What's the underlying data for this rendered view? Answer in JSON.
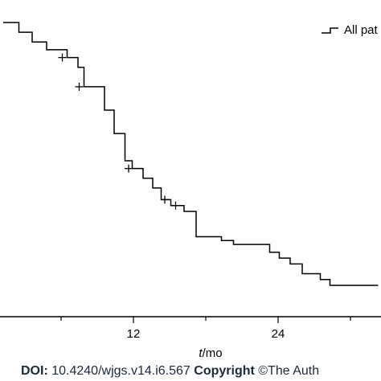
{
  "chart_data": {
    "type": "line",
    "subtype": "kaplan-meier-step",
    "xlabel_italic": "t",
    "xlabel_rest": "/mo",
    "xticks": [
      12,
      24
    ],
    "xlim": [
      1.2,
      32.3
    ],
    "ylim": [
      0.3,
      1.0
    ],
    "legend": {
      "placement": "top-right",
      "label": "All pat"
    },
    "series": [
      {
        "name": "All pat",
        "color": "#000000",
        "steps": [
          [
            1.2,
            0.975
          ],
          [
            2.5,
            0.95
          ],
          [
            3.6,
            0.925
          ],
          [
            4.8,
            0.905
          ],
          [
            6.5,
            0.885
          ],
          [
            7.4,
            0.86
          ],
          [
            7.9,
            0.81
          ],
          [
            9.6,
            0.75
          ],
          [
            10.4,
            0.69
          ],
          [
            11.3,
            0.62
          ],
          [
            11.9,
            0.6
          ],
          [
            12.8,
            0.575
          ],
          [
            13.6,
            0.55
          ],
          [
            14.3,
            0.52
          ],
          [
            15.1,
            0.505
          ],
          [
            16.2,
            0.49
          ],
          [
            17.2,
            0.425
          ],
          [
            19.3,
            0.415
          ],
          [
            20.3,
            0.405
          ],
          [
            23.3,
            0.385
          ],
          [
            24.1,
            0.37
          ],
          [
            25.0,
            0.355
          ],
          [
            26.0,
            0.33
          ],
          [
            27.5,
            0.315
          ],
          [
            28.3,
            0.3
          ]
        ],
        "end_x": 32.3
      }
    ],
    "censor_marks": [
      {
        "x": 6.1,
        "y": 0.885
      },
      {
        "x": 7.5,
        "y": 0.81
      },
      {
        "x": 11.6,
        "y": 0.6
      },
      {
        "x": 14.6,
        "y": 0.52
      },
      {
        "x": 15.5,
        "y": 0.505
      }
    ]
  },
  "footer": {
    "doi_key": "DOI:",
    "doi_value": "10.4240/wjgs.v14.i6.567",
    "copyright_key": "Copyright",
    "copyright_value": "©The Auth"
  }
}
